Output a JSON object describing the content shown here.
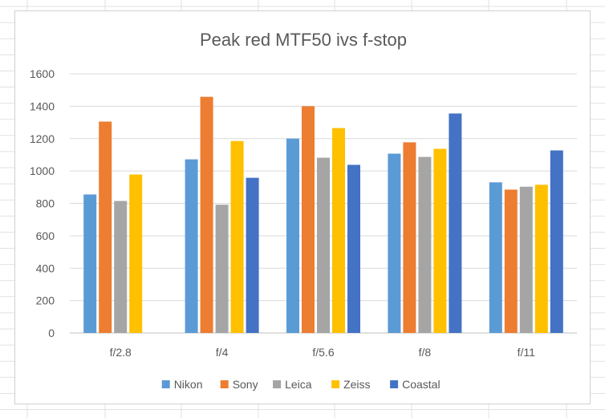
{
  "chart_data": {
    "type": "bar",
    "title": "Peak red MTF50 ivs f-stop",
    "categories": [
      "f/2.8",
      "f/4",
      "f/5.6",
      "f/8",
      "f/11"
    ],
    "series": [
      {
        "name": "Nikon",
        "color": "#5b9bd5",
        "values": [
          855,
          1072,
          1200,
          1107,
          930
        ]
      },
      {
        "name": "Sony",
        "color": "#ed7d31",
        "values": [
          1305,
          1458,
          1400,
          1177,
          885
        ]
      },
      {
        "name": "Leica",
        "color": "#a5a5a5",
        "values": [
          815,
          792,
          1082,
          1087,
          903
        ]
      },
      {
        "name": "Zeiss",
        "color": "#ffc000",
        "values": [
          978,
          1185,
          1265,
          1137,
          915
        ]
      },
      {
        "name": "Coastal",
        "color": "#4472c4",
        "values": [
          null,
          958,
          1038,
          1355,
          1127
        ]
      }
    ],
    "y_ticks": [
      0,
      200,
      400,
      600,
      800,
      1000,
      1200,
      1400,
      1600
    ],
    "ylim": [
      0,
      1600
    ],
    "grid": true,
    "legend_position": "bottom"
  }
}
